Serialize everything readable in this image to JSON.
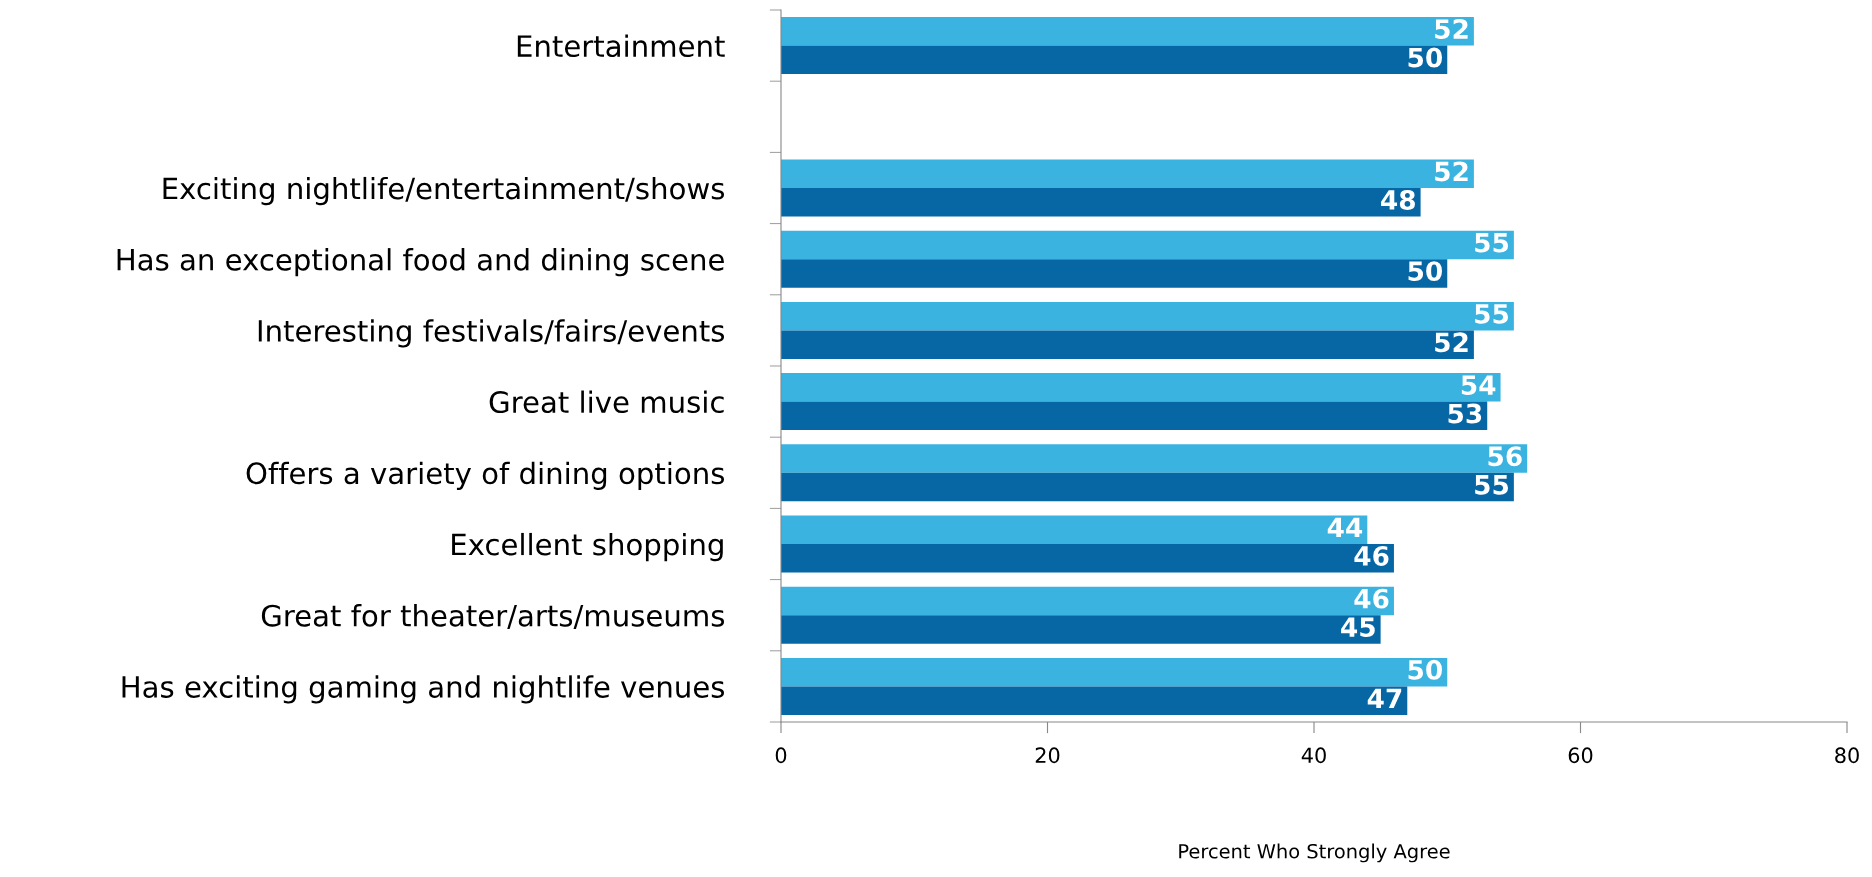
{
  "chart_data": {
    "type": "bar",
    "orientation": "horizontal",
    "xlabel": "Percent Who Strongly Agree",
    "categories": [
      "Entertainment",
      null,
      "Exciting nightlife/entertainment/shows",
      "Has an exceptional food and dining scene",
      "Interesting festivals/fairs/events",
      "Great live music",
      "Offers a variety of dining options",
      "Excellent shopping",
      "Great for theater/arts/museums",
      "Has exciting gaming and nightlife venues"
    ],
    "series": [
      {
        "color": "#3bb3e0",
        "values": [
          52,
          null,
          52,
          55,
          55,
          54,
          56,
          44,
          46,
          50
        ]
      },
      {
        "color": "#0767a5",
        "values": [
          50,
          null,
          48,
          50,
          52,
          53,
          55,
          46,
          45,
          47
        ]
      }
    ],
    "xlim": [
      0,
      80
    ],
    "xticks": [
      0,
      20,
      40,
      60,
      80
    ],
    "data_labels": true,
    "grid": false
  }
}
